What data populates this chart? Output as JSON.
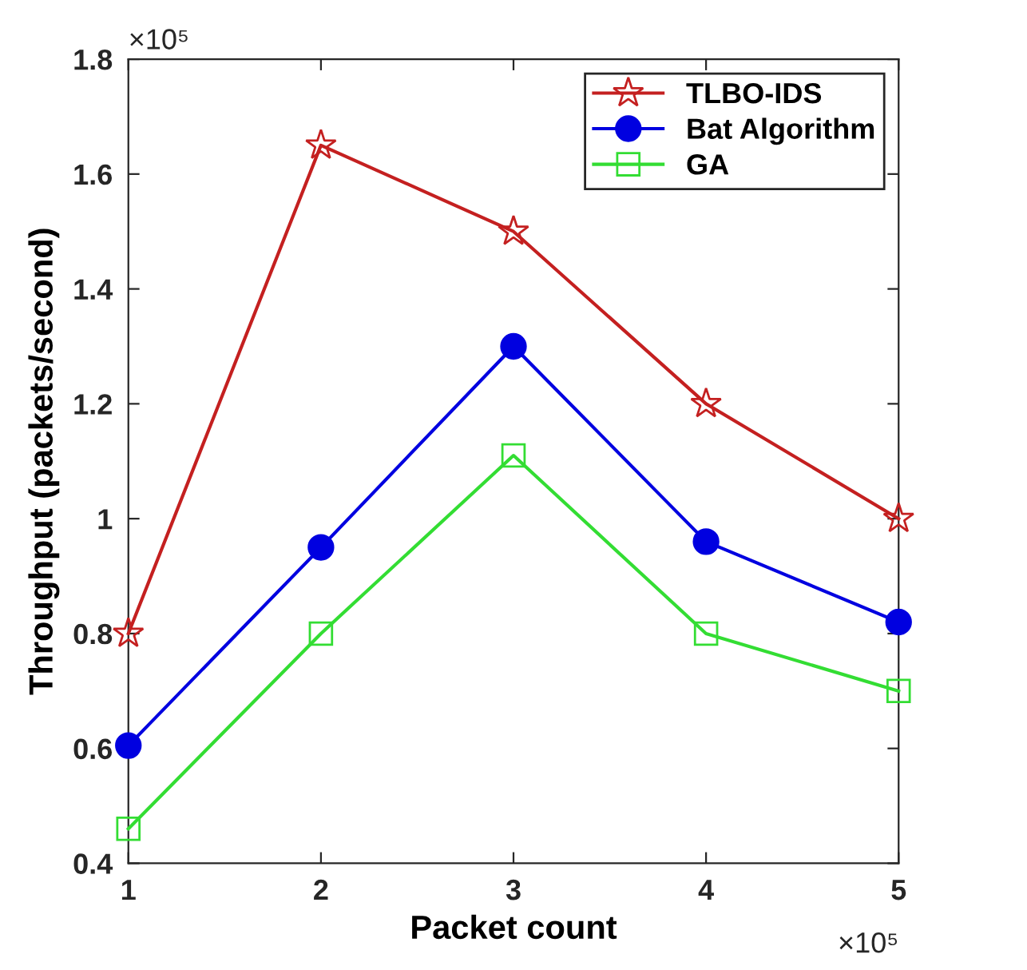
{
  "chart_data": {
    "type": "line",
    "xlabel": "Packet count",
    "ylabel": "Throughput (packets/second)",
    "x": [
      1,
      2,
      3,
      4,
      5
    ],
    "series": [
      {
        "name": "TLBO-IDS",
        "color": "#c42020",
        "marker": "star",
        "values": [
          0.8,
          1.65,
          1.5,
          1.2,
          1.0
        ]
      },
      {
        "name": "Bat Algorithm",
        "color": "#0000e0",
        "marker": "circle",
        "values": [
          0.605,
          0.95,
          1.3,
          0.96,
          0.82
        ]
      },
      {
        "name": "GA",
        "color": "#33dd33",
        "marker": "square",
        "values": [
          0.46,
          0.8,
          1.11,
          0.8,
          0.7
        ]
      }
    ],
    "xlim": [
      1,
      5
    ],
    "xticks": [
      1,
      2,
      3,
      4,
      5
    ],
    "ylim": [
      0.4,
      1.8
    ],
    "yticks": [
      0.4,
      0.6,
      0.8,
      1,
      1.2,
      1.4,
      1.6,
      1.8
    ],
    "annotations": [
      "×10⁵",
      "×10⁵"
    ],
    "legend": "top right",
    "grid": false,
    "line_style": "solid"
  }
}
